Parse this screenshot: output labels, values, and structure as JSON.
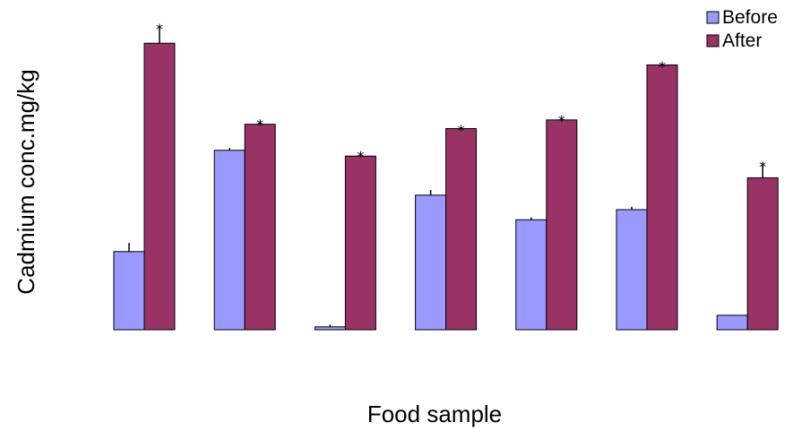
{
  "chart_data": {
    "type": "bar",
    "title": "",
    "xlabel": "Food sample",
    "ylabel": "Cadmium conc.mg/kg",
    "ylim": [
      0,
      100
    ],
    "grid": false,
    "legend_position": "top-right",
    "categories": [
      "",
      "",
      "",
      "",
      "",
      "",
      ""
    ],
    "series": [
      {
        "name": "Before",
        "color": "#9999ff",
        "values": [
          27.0,
          62.0,
          1.0,
          46.5,
          38.0,
          41.5,
          5.0
        ],
        "errors": [
          3.0,
          0.8,
          0.8,
          1.8,
          0.8,
          1.0,
          0.0
        ]
      },
      {
        "name": "After",
        "color": "#993366",
        "values": [
          99.0,
          71.0,
          60.0,
          69.5,
          72.5,
          91.5,
          52.5
        ],
        "errors": [
          6.0,
          1.0,
          1.0,
          0.5,
          0.8,
          0.5,
          5.0
        ],
        "markers": [
          "*",
          "*",
          "*",
          "*",
          "*",
          "*",
          "*"
        ]
      }
    ]
  }
}
